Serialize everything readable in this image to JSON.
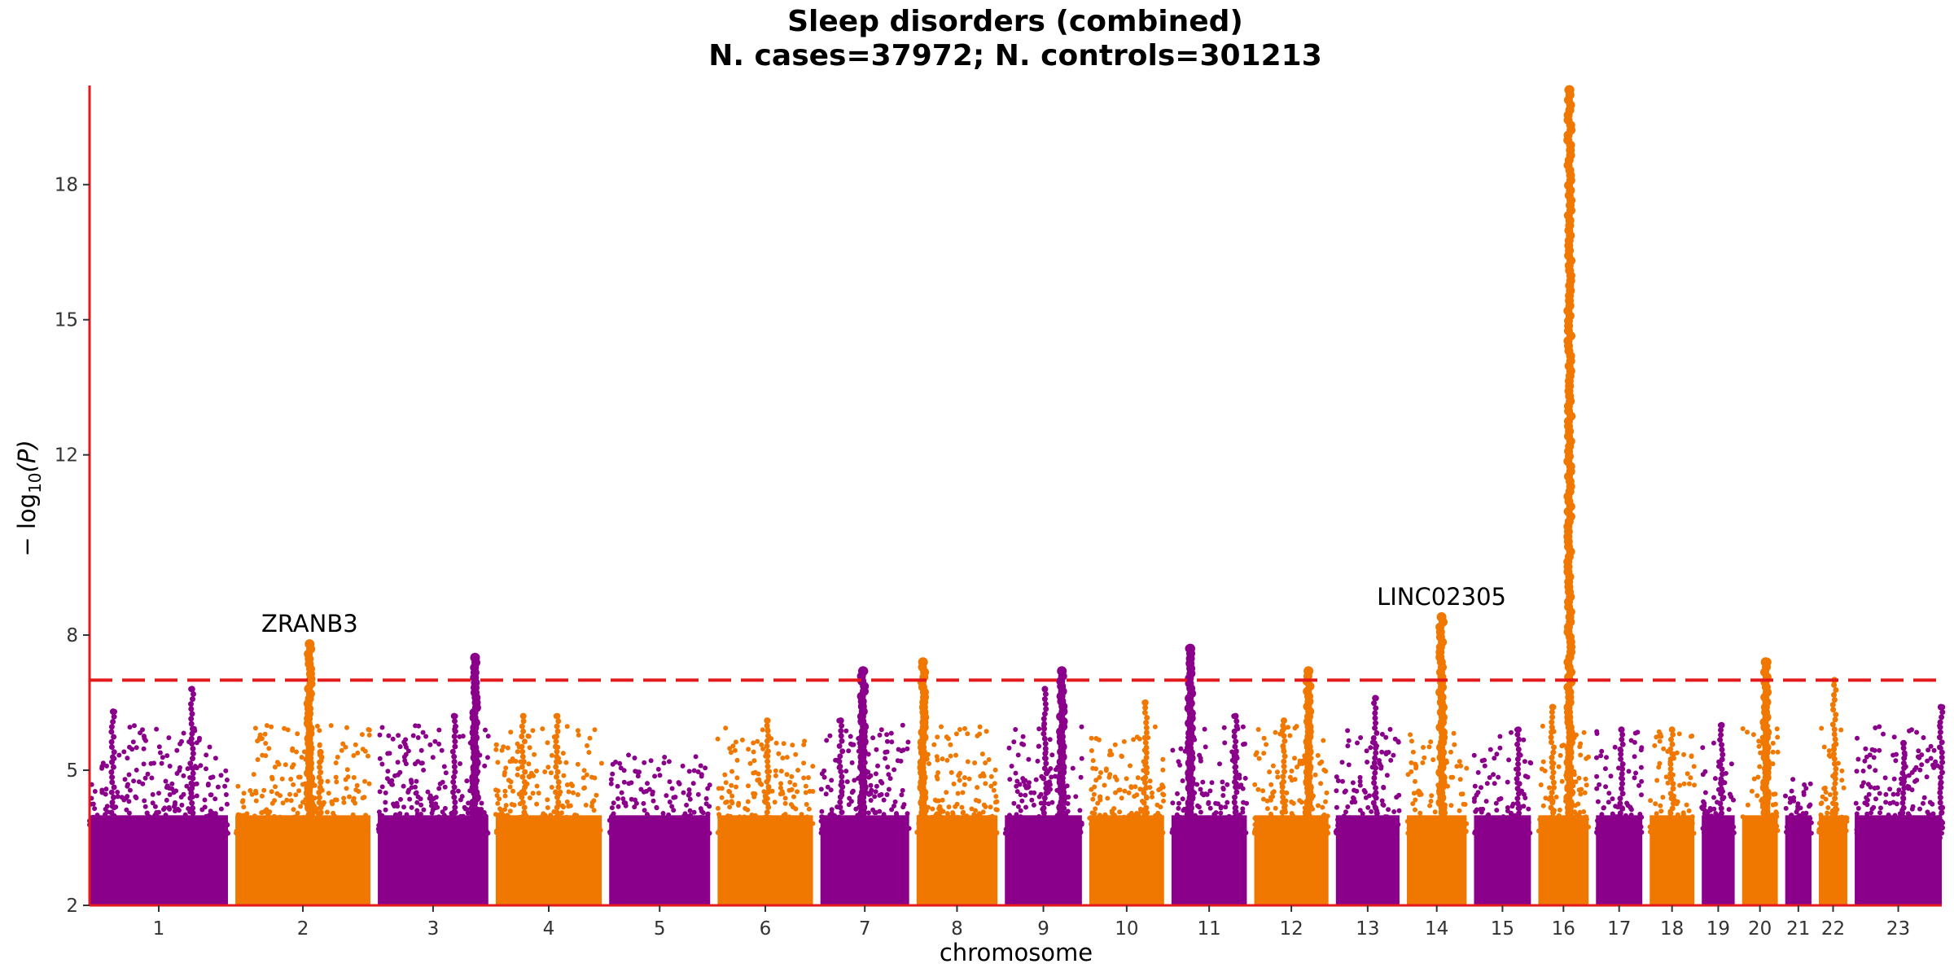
{
  "chart_data": {
    "type": "scatter",
    "title": "Sleep disorders (combined)",
    "subtitle": "N. cases=37972; N. controls=301213",
    "xlabel": "chromosome",
    "ylabel_main": "− log",
    "ylabel_sub": "10",
    "ylabel_var": "(P)",
    "ylim": [
      2,
      20.2
    ],
    "y_ticks": [
      2,
      5,
      8,
      12,
      15,
      18
    ],
    "grid": false,
    "significance_line": {
      "value": 7.0,
      "style": "dashed",
      "color": "#e31a1c"
    },
    "colors": {
      "odd": "#8b008b",
      "even": "#f07800",
      "axis": "#e31a1c"
    },
    "chromosomes": [
      {
        "label": "1",
        "length": 248,
        "max": 6.8
      },
      {
        "label": "2",
        "length": 242,
        "max": 7.8
      },
      {
        "label": "3",
        "length": 198,
        "max": 7.5
      },
      {
        "label": "4",
        "length": 190,
        "max": 6.2
      },
      {
        "label": "5",
        "length": 181,
        "max": 5.4
      },
      {
        "label": "6",
        "length": 171,
        "max": 6.1
      },
      {
        "label": "7",
        "length": 159,
        "max": 7.2
      },
      {
        "label": "8",
        "length": 145,
        "max": 7.4
      },
      {
        "label": "9",
        "length": 138,
        "max": 7.2
      },
      {
        "label": "10",
        "length": 134,
        "max": 6.5
      },
      {
        "label": "11",
        "length": 135,
        "max": 7.7
      },
      {
        "label": "12",
        "length": 133,
        "max": 7.2
      },
      {
        "label": "13",
        "length": 114,
        "max": 6.6
      },
      {
        "label": "14",
        "length": 107,
        "max": 8.4
      },
      {
        "label": "15",
        "length": 102,
        "max": 5.9
      },
      {
        "label": "16",
        "length": 90,
        "max": 20.1
      },
      {
        "label": "17",
        "length": 83,
        "max": 5.9
      },
      {
        "label": "18",
        "length": 80,
        "max": 5.9
      },
      {
        "label": "19",
        "length": 59,
        "max": 6.0
      },
      {
        "label": "20",
        "length": 64,
        "max": 7.4
      },
      {
        "label": "21",
        "length": 47,
        "max": 4.8
      },
      {
        "label": "22",
        "length": 51,
        "max": 7.0
      },
      {
        "label": "23",
        "length": 156,
        "max": 6.4
      }
    ],
    "peaks": [
      {
        "chr": "1",
        "pos": 0.74,
        "y": 6.8
      },
      {
        "chr": "1",
        "pos": 0.17,
        "y": 6.3
      },
      {
        "chr": "2",
        "pos": 0.55,
        "y": 7.8
      },
      {
        "chr": "2",
        "pos": 0.63,
        "y": 5.4
      },
      {
        "chr": "3",
        "pos": 0.88,
        "y": 7.5
      },
      {
        "chr": "3",
        "pos": 0.69,
        "y": 6.2
      },
      {
        "chr": "4",
        "pos": 0.26,
        "y": 6.2
      },
      {
        "chr": "4",
        "pos": 0.58,
        "y": 6.2
      },
      {
        "chr": "6",
        "pos": 0.52,
        "y": 6.1
      },
      {
        "chr": "7",
        "pos": 0.48,
        "y": 7.2
      },
      {
        "chr": "7",
        "pos": 0.23,
        "y": 6.1
      },
      {
        "chr": "8",
        "pos": 0.08,
        "y": 7.4
      },
      {
        "chr": "9",
        "pos": 0.74,
        "y": 7.2
      },
      {
        "chr": "9",
        "pos": 0.52,
        "y": 6.8
      },
      {
        "chr": "10",
        "pos": 0.75,
        "y": 6.5
      },
      {
        "chr": "11",
        "pos": 0.25,
        "y": 7.7
      },
      {
        "chr": "11",
        "pos": 0.85,
        "y": 6.2
      },
      {
        "chr": "12",
        "pos": 0.73,
        "y": 7.2
      },
      {
        "chr": "12",
        "pos": 0.4,
        "y": 6.1
      },
      {
        "chr": "13",
        "pos": 0.62,
        "y": 6.6
      },
      {
        "chr": "14",
        "pos": 0.58,
        "y": 8.4
      },
      {
        "chr": "15",
        "pos": 0.78,
        "y": 5.9
      },
      {
        "chr": "16",
        "pos": 0.62,
        "y": 20.1
      },
      {
        "chr": "16",
        "pos": 0.28,
        "y": 6.4
      },
      {
        "chr": "17",
        "pos": 0.55,
        "y": 5.9
      },
      {
        "chr": "18",
        "pos": 0.5,
        "y": 5.9
      },
      {
        "chr": "19",
        "pos": 0.6,
        "y": 6.0
      },
      {
        "chr": "20",
        "pos": 0.66,
        "y": 7.4
      },
      {
        "chr": "22",
        "pos": 0.55,
        "y": 7.0
      },
      {
        "chr": "23",
        "pos": 0.56,
        "y": 5.6
      },
      {
        "chr": "23",
        "pos": 0.99,
        "y": 6.4
      }
    ],
    "annotations": [
      {
        "text": "ZRANB3",
        "chr": "2",
        "pos": 0.55,
        "y": 7.8
      },
      {
        "text": "LINC02305",
        "chr": "14",
        "pos": 0.58,
        "y": 8.4
      }
    ]
  }
}
